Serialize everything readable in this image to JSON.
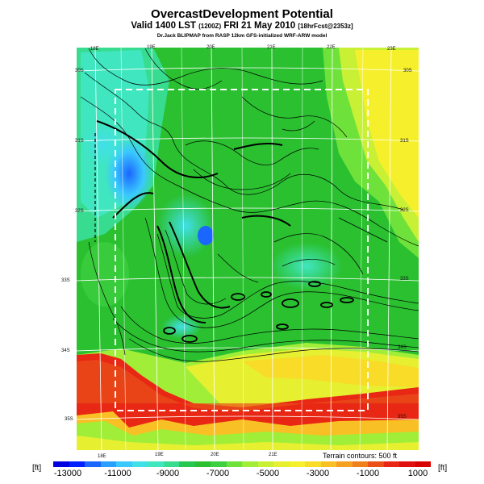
{
  "header": {
    "title": "OvercastDevelopment Potential",
    "valid_main": "Valid 1400 LST",
    "valid_utc": "(1200Z)",
    "valid_date": "FRI 21 May 2010",
    "valid_fcst": "[18hrFcst@2353z]",
    "credit": "Dr.Jack BLIPMAP from RASP 12km GFS-initialized WRF-ARW model"
  },
  "map": {
    "top_labels": [
      "18E",
      "19E",
      "20E",
      "21E",
      "22E",
      "23E"
    ],
    "bottom_labels": [
      "18E",
      "19E",
      "20E",
      "21E"
    ],
    "left_labels": [
      "30S",
      "31S",
      "32S",
      "33S",
      "34S",
      "35S"
    ],
    "right_labels": [
      "30S",
      "31S",
      "32S",
      "33S",
      "34S",
      "35S"
    ]
  },
  "legend": {
    "unit_left": "[ft]",
    "unit_right": "[ft]",
    "terrain_note": "Terrain contours: 500 ft",
    "tick_labels": [
      "-13000",
      "-11000",
      "-9000",
      "-7000",
      "-5000",
      "-3000",
      "-1000",
      "1000"
    ],
    "colors": [
      "#0000e0",
      "#0020ff",
      "#1a66ff",
      "#2a9fff",
      "#3ac8ff",
      "#40e0e8",
      "#40e6c0",
      "#38dc90",
      "#28c850",
      "#2ac030",
      "#3ed040",
      "#6ee23a",
      "#a0ee38",
      "#c8f034",
      "#e6f030",
      "#f6f02c",
      "#f8dc28",
      "#f8c024",
      "#f6a020",
      "#f0801c",
      "#ea5018",
      "#e82814",
      "#e01010",
      "#d80000"
    ]
  }
}
